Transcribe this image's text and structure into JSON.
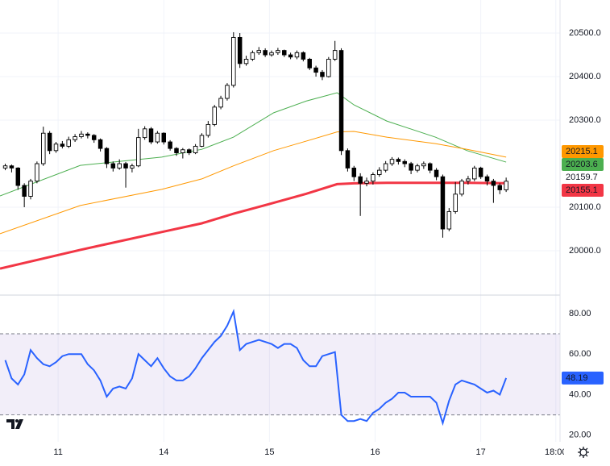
{
  "chart_data": [
    {
      "type": "candlestick",
      "x": [
        -0.5,
        -0.44,
        -0.38,
        -0.32,
        -0.26,
        -0.2,
        -0.14,
        -0.08,
        -0.02,
        0.04,
        0.1,
        0.16,
        0.22,
        0.28,
        0.34,
        0.4,
        0.46,
        0.52,
        0.58,
        0.64,
        0.7,
        0.76,
        0.82,
        0.88,
        0.94,
        1,
        1.06,
        1.12,
        1.18,
        1.24,
        1.3,
        1.36,
        1.42,
        1.48,
        1.54,
        1.6,
        1.66,
        1.72,
        1.78,
        1.84,
        1.9,
        1.96,
        2.02,
        2.08,
        2.14,
        2.2,
        2.26,
        2.32,
        2.38,
        2.44,
        2.5,
        2.56,
        2.62,
        2.68,
        2.74,
        2.8,
        2.86,
        2.92,
        2.98,
        3.04,
        3.1,
        3.16,
        3.22,
        3.28,
        3.34,
        3.4,
        3.46,
        3.52,
        3.58,
        3.64,
        3.7,
        3.76,
        3.82,
        3.88,
        3.94,
        4,
        4.06,
        4.12,
        4.18,
        4.24
      ],
      "open": [
        20190,
        20195,
        20190,
        20150,
        20125,
        20160,
        20200,
        20270,
        20230,
        20245,
        20240,
        20255,
        20262,
        20268,
        20265,
        20255,
        20235,
        20200,
        20190,
        20200,
        20190,
        20195,
        20260,
        20280,
        20250,
        20270,
        20250,
        20235,
        20225,
        20232,
        20225,
        20240,
        20265,
        20290,
        20330,
        20350,
        20380,
        20490,
        20430,
        20440,
        20455,
        20460,
        20450,
        20455,
        20460,
        20450,
        20445,
        20455,
        20440,
        20420,
        20410,
        20400,
        20440,
        20460,
        20230,
        20190,
        20170,
        20155,
        20160,
        20175,
        20185,
        20200,
        20210,
        20205,
        20200,
        20185,
        20195,
        20200,
        20185,
        20170,
        20050,
        20090,
        20130,
        20160,
        20165,
        20190,
        20170,
        20160,
        20150,
        20140
      ],
      "high": [
        20200,
        20198,
        20192,
        20155,
        20165,
        20205,
        20285,
        20275,
        20250,
        20252,
        20262,
        20268,
        20275,
        20272,
        20268,
        20258,
        20238,
        20205,
        20210,
        20204,
        20200,
        20280,
        20286,
        20284,
        20275,
        20272,
        20254,
        20238,
        20236,
        20235,
        20245,
        20270,
        20298,
        20335,
        20356,
        20385,
        20502,
        20500,
        20448,
        20460,
        20468,
        20465,
        20460,
        20466,
        20462,
        20455,
        20460,
        20458,
        20443,
        20425,
        20415,
        20445,
        20482,
        20465,
        20235,
        20195,
        20178,
        20168,
        20180,
        20192,
        20206,
        20215,
        20214,
        20210,
        20204,
        20200,
        20205,
        20203,
        20190,
        20175,
        20098,
        20158,
        20165,
        20172,
        20195,
        20193,
        20175,
        20165,
        20155,
        20168
      ],
      "low": [
        20185,
        20180,
        20140,
        20100,
        20118,
        20155,
        20195,
        20222,
        20225,
        20235,
        20236,
        20250,
        20258,
        20258,
        20248,
        20228,
        20190,
        20182,
        20186,
        20145,
        20180,
        20192,
        20255,
        20245,
        20246,
        20244,
        20230,
        20218,
        20212,
        20220,
        20222,
        20238,
        20260,
        20286,
        20325,
        20345,
        20375,
        20420,
        20425,
        20436,
        20450,
        20445,
        20446,
        20450,
        20445,
        20440,
        20440,
        20435,
        20415,
        20400,
        20392,
        20398,
        20436,
        20220,
        20182,
        20160,
        20080,
        20148,
        20152,
        20170,
        20180,
        20195,
        20198,
        20192,
        20176,
        20180,
        20188,
        20178,
        20162,
        20030,
        20045,
        20085,
        20125,
        20152,
        20160,
        20165,
        20150,
        20110,
        20130,
        20135
      ],
      "close": [
        20195,
        20190,
        20150,
        20125,
        20160,
        20200,
        20270,
        20230,
        20245,
        20240,
        20255,
        20262,
        20268,
        20265,
        20255,
        20235,
        20200,
        20190,
        20200,
        20190,
        20195,
        20260,
        20280,
        20250,
        20270,
        20250,
        20235,
        20225,
        20232,
        20225,
        20240,
        20265,
        20290,
        20330,
        20350,
        20380,
        20490,
        20430,
        20440,
        20455,
        20460,
        20450,
        20455,
        20460,
        20450,
        20445,
        20455,
        20440,
        20420,
        20410,
        20400,
        20440,
        20460,
        20230,
        20190,
        20170,
        20155,
        20160,
        20175,
        20185,
        20200,
        20210,
        20205,
        20200,
        20185,
        20195,
        20200,
        20185,
        20170,
        20050,
        20090,
        20130,
        20160,
        20165,
        20190,
        20170,
        20160,
        20150,
        20140,
        20159.7
      ],
      "up_color": "#ffffff",
      "down_color": "#000000",
      "series": [
        {
          "color": "#4caf50",
          "x": [
            -0.55,
            0.21,
            0.98,
            1.36,
            1.66,
            2.04,
            2.35,
            2.64,
            2.8,
            3.11,
            3.57,
            3.87,
            4.24
          ],
          "values": [
            20126,
            20196,
            20215,
            20233,
            20261,
            20317,
            20344,
            20363,
            20335,
            20298,
            20261,
            20230,
            20203.6
          ]
        },
        {
          "color": "#ff9800",
          "x": [
            -0.55,
            0.21,
            0.98,
            1.36,
            1.66,
            2.04,
            2.35,
            2.64,
            2.8,
            3.11,
            3.57,
            3.87,
            4.24
          ],
          "values": [
            20039,
            20104,
            20141,
            20165,
            20195,
            20230,
            20252,
            20273,
            20274,
            20261,
            20246,
            20233,
            20215.1
          ]
        },
        {
          "color": "#f23645",
          "x": [
            -0.55,
            0.21,
            0.98,
            1.36,
            1.66,
            2.04,
            2.35,
            2.64,
            2.8,
            3.11,
            3.57,
            3.87,
            4.24
          ],
          "values": [
            19959,
            20002,
            20043,
            20063,
            20085,
            20110,
            20131,
            20153,
            20155,
            20156,
            20156,
            20156,
            20155.1
          ]
        }
      ],
      "xlim": [
        -0.55,
        4.75
      ],
      "xticks": [
        {
          "value": 0,
          "label": "11"
        },
        {
          "value": 1,
          "label": "14"
        },
        {
          "value": 2,
          "label": "15"
        },
        {
          "value": 3,
          "label": "16"
        },
        {
          "value": 4,
          "label": "17"
        },
        {
          "value": 4.71,
          "label": "18:00"
        }
      ],
      "ylim": [
        19900,
        20576
      ],
      "yticks": [
        {
          "value": 20000,
          "label": "20000.0"
        },
        {
          "value": 20100,
          "label": "20100.0"
        },
        {
          "value": 20300,
          "label": "20300.0"
        },
        {
          "value": 20400,
          "label": "20400.0"
        },
        {
          "value": 20500,
          "label": "20500.0"
        }
      ],
      "grid": true
    },
    {
      "type": "line",
      "values": [
        57,
        48,
        45,
        50,
        62,
        58,
        55,
        54,
        56,
        59,
        60,
        60,
        60,
        55,
        52,
        47,
        39,
        43,
        44,
        43,
        48,
        60,
        57,
        54,
        58,
        53,
        49,
        47,
        47,
        49,
        53,
        58,
        62,
        66,
        69,
        74,
        81,
        62,
        65,
        66,
        67,
        66,
        65,
        63,
        65,
        65,
        63,
        57,
        54,
        54,
        59,
        60,
        61,
        30,
        27,
        27,
        28,
        27,
        31,
        33,
        36,
        38,
        41,
        41,
        39,
        39,
        39,
        39,
        36,
        26,
        37,
        45,
        47,
        46,
        45,
        43,
        41,
        42,
        40,
        48.19
      ],
      "color": "#2962ff",
      "band": [
        30,
        70
      ],
      "ylim": [
        10,
        88.3
      ],
      "yticks": [
        {
          "value": 20,
          "label": "20.00"
        },
        {
          "value": 40,
          "label": "40.00"
        },
        {
          "value": 60,
          "label": "60.00"
        },
        {
          "value": 80,
          "label": "80.00"
        }
      ]
    }
  ]
}
